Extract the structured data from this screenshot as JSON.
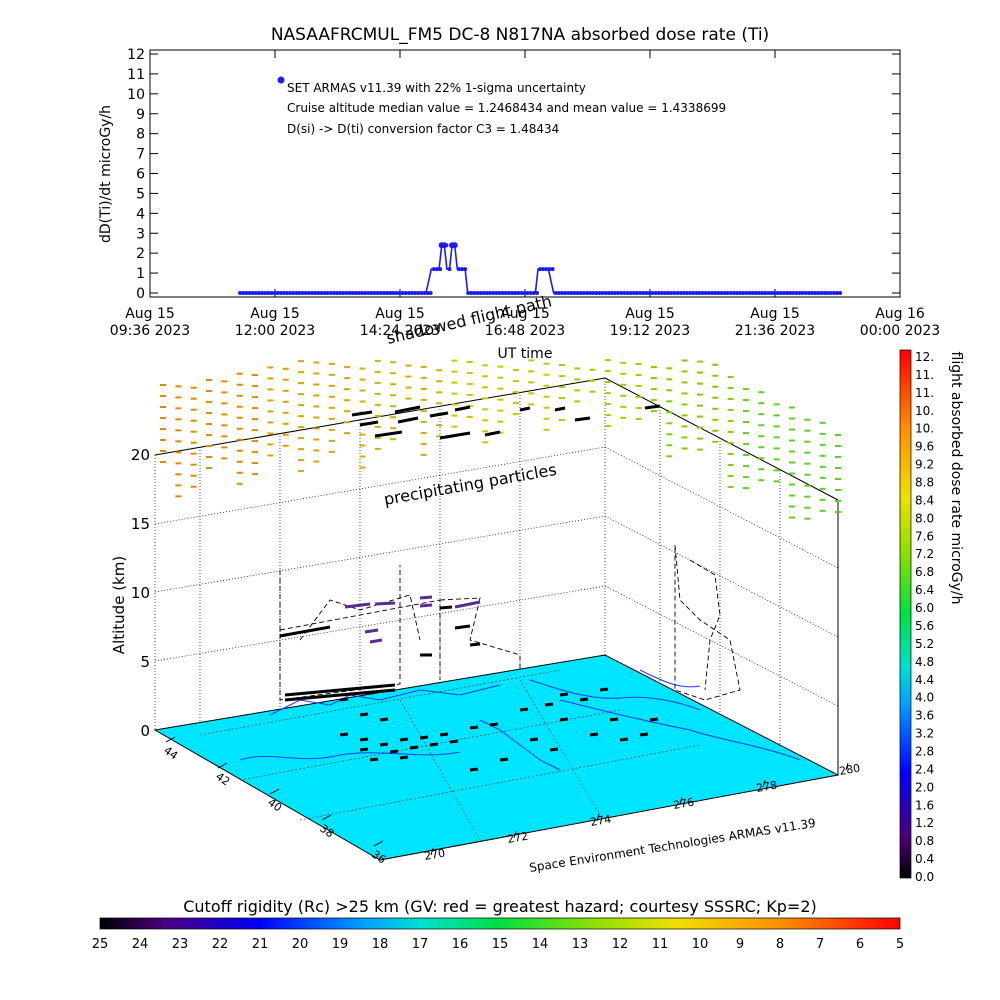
{
  "chart_data": [
    {
      "type": "line",
      "title": "NASAAFRCMUL_FM5 DC-8   N817NA absorbed dose rate (Ti)",
      "ylabel": "dD(Ti)/dt microGy/h",
      "xlabel": "UT time",
      "ylim": [
        0,
        12
      ],
      "yticks": [
        "0",
        "1",
        "2",
        "3",
        "4",
        "5",
        "6",
        "7",
        "8",
        "9",
        "10",
        "11",
        "12"
      ],
      "xticks": [
        {
          "top": "Aug 15",
          "bottom": "09:36 2023"
        },
        {
          "top": "Aug 15",
          "bottom": "12:00 2023"
        },
        {
          "top": "Aug 15",
          "bottom": "14:24 2023"
        },
        {
          "top": "Aug 15",
          "bottom": "16:48 2023"
        },
        {
          "top": "Aug 15",
          "bottom": "19:12 2023"
        },
        {
          "top": "Aug 15",
          "bottom": "21:36 2023"
        },
        {
          "top": "Aug 16",
          "bottom": "00:00 2023"
        }
      ],
      "annotations": [
        "SET ARMAS v11.39 with 22% 1-sigma uncertainty",
        "Cruise altitude median value = 1.2468434 and mean value = 1.4338699",
        "D(si) -> D(ti) conversion factor C3 = 1.48434"
      ],
      "series": [
        {
          "color": "#1a1aff",
          "x_hours": [
            11.33,
            11.6,
            12.0,
            12.5,
            13.0,
            13.5,
            14.0,
            14.5,
            14.9,
            15.0,
            15.08,
            15.15,
            15.2,
            15.25,
            15.3,
            15.35,
            15.4,
            15.45,
            15.5,
            15.55,
            15.6,
            15.65,
            15.7,
            15.8,
            16.0,
            16.5,
            17.0,
            17.05,
            17.1,
            17.2,
            17.25,
            17.35,
            17.5,
            18.0,
            19.0,
            20.0,
            21.0,
            22.0,
            22.88
          ],
          "values": [
            0,
            0,
            0,
            0,
            0,
            0,
            0,
            0,
            0,
            1.2,
            1.2,
            1.2,
            2.4,
            2.4,
            1.2,
            1.2,
            2.4,
            2.4,
            1.2,
            1.2,
            1.2,
            1.2,
            0,
            0,
            0,
            0,
            0,
            1.2,
            1.2,
            1.2,
            1.2,
            0,
            0,
            0,
            0,
            0,
            0,
            0,
            0
          ]
        }
      ]
    },
    {
      "type": "scatter",
      "subtype": "3d-flight-track",
      "ylabel": "Altitude (km)",
      "zticks": [
        "0",
        "5",
        "10",
        "15",
        "20"
      ],
      "lat_ticks": [
        "44",
        "42",
        "40",
        "38",
        "36"
      ],
      "lon_ticks": [
        "270",
        "272",
        "274",
        "276",
        "278",
        "280"
      ],
      "labels": {
        "precipitating": "precipitating particles",
        "shadowed": "shadowed flight path",
        "credit": "Space Environment Technologies ARMAS v11.39"
      },
      "colorbar": {
        "label": "flight absorbed dose rate microGy/h",
        "ticks": [
          "12.",
          "11.",
          "11.",
          "10.",
          "10.",
          "9.6",
          "9.2",
          "8.8",
          "8.4",
          "8.0",
          "7.6",
          "7.2",
          "6.8",
          "6.4",
          "6.0",
          "5.6",
          "5.2",
          "4.8",
          "4.4",
          "4.0",
          "3.6",
          "3.2",
          "2.8",
          "2.4",
          "2.0",
          "1.6",
          "1.2",
          "0.8",
          "0.4",
          "0.0"
        ]
      },
      "rigidity_bar": {
        "title": "Cutoff rigidity (Rc) >25 km (GV: red = greatest hazard; courtesy SSSRC; Kp=2)",
        "ticks": [
          "25",
          "24",
          "23",
          "22",
          "21",
          "20",
          "19",
          "18",
          "17",
          "16",
          "15",
          "14",
          "13",
          "12",
          "11",
          "10",
          "9",
          "8",
          "7",
          "6",
          "5"
        ]
      },
      "colors": {
        "map": "#00e5ff",
        "track": "#000000",
        "shadow": "#000000"
      }
    }
  ]
}
